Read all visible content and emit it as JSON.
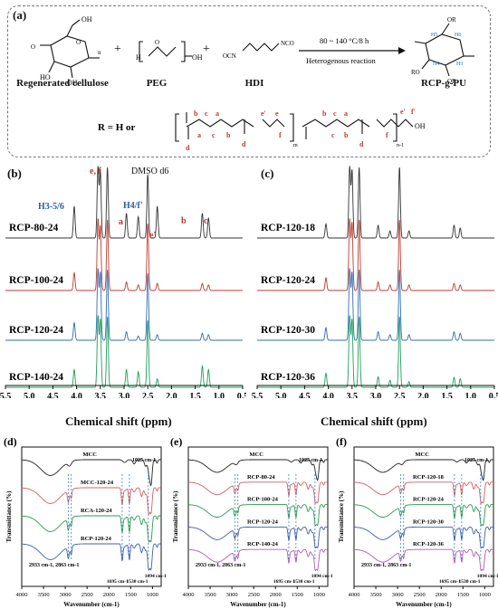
{
  "panel_a": {
    "label": "(a)",
    "reactants": [
      "Regenerated cellulose",
      "PEG",
      "HDI"
    ],
    "plus": "+",
    "conditions_top": "80 ~ 140 °C/8 h",
    "conditions_bottom": "Heterogenous reaction",
    "product": "RCP-g-PU",
    "r_definition": "R = H or",
    "peg_h": "H",
    "peg_oh": "OH",
    "hdi_left": "OCN",
    "hdi_right": "NCO",
    "prod_or_top": "OR",
    "prod_ro": "RO",
    "prod_or_right": "OR",
    "h_labels": [
      "H5",
      "H6",
      "H4",
      "H3"
    ],
    "r_letters_top": [
      "b",
      "c",
      "a",
      "e'",
      "e",
      "b",
      "c",
      "a",
      "e'",
      "f'"
    ],
    "r_letters_bottom": [
      "a",
      "c",
      "b",
      "f",
      "c",
      "b",
      "f"
    ],
    "r_d": [
      "d",
      "d",
      "d"
    ],
    "r_subs": [
      "m",
      "n-1",
      "OH"
    ],
    "r_atoms": [
      "O",
      "N",
      "H",
      "O",
      "O"
    ]
  },
  "nmr_b": {
    "label": "(b)",
    "annotations": [
      "e, f",
      "DMSO d6",
      "H3-5/6",
      "H4/f'",
      "a",
      "e'",
      "b",
      "c"
    ],
    "series": [
      "RCP-80-24",
      "RCP-100-24",
      "RCP-120-24",
      "RCP-140-24"
    ],
    "xlabel": "Chemical shift (ppm)"
  },
  "nmr_c": {
    "label": "(c)",
    "series": [
      "RCP-120-18",
      "RCP-120-24",
      "RCP-120-30",
      "RCP-120-36"
    ],
    "xlabel": "Chemical shift (ppm)"
  },
  "ftir_d": {
    "label": "(d)",
    "series": [
      "MCC",
      "MCC-120-24",
      "RCA-120-24",
      "RCP-120-24"
    ],
    "annotations": [
      "1025 cm-1",
      "2933 cm-1, 2863 cm-1",
      "1695 cm-1",
      "1530 cm-1",
      "1094 cm-1"
    ]
  },
  "ftir_e": {
    "label": "(e)",
    "series": [
      "MCC",
      "RCP-80-24",
      "RCP-100-24",
      "RCP-120-24",
      "RCP-140-24"
    ],
    "annotations": [
      "1025 cm-1",
      "2933 cm-1, 2863 cm-1",
      "1695 cm-1",
      "1530 cm-1",
      "1094 cm-1"
    ]
  },
  "ftir_f": {
    "label": "(f)",
    "series": [
      "MCC",
      "RCP-120-18",
      "RCP-120-24",
      "RCP-120-30",
      "RCP-120-36"
    ],
    "annotations": [
      "1025 cm-1",
      "2933 cm-1, 2863 cm-1",
      "1695 cm-1",
      "1530 cm-1",
      "1094 cm-1"
    ]
  },
  "chart_data": [
    {
      "type": "line",
      "panel": "b",
      "xlabel": "Chemical shift (ppm)",
      "x_ticks": [
        "5.5",
        "5.0",
        "4.5",
        "4.0",
        "3.5",
        "3.0",
        "2.5",
        "2.0",
        "1.5",
        "1.0",
        "0.5"
      ],
      "xlim": [
        5.5,
        0.5
      ],
      "peaks_ppm": [
        4.05,
        3.55,
        3.5,
        3.35,
        2.95,
        2.7,
        2.5,
        2.3,
        1.35,
        1.22
      ],
      "series": [
        {
          "name": "RCP-80-24",
          "color": "#333333",
          "heights": [
            0.45,
            1.0,
            0.95,
            1.0,
            0.35,
            0.3,
            0.9,
            0.45,
            0.35,
            0.28
          ]
        },
        {
          "name": "RCP-100-24",
          "color": "#c0392b",
          "heights": [
            0.25,
            1.0,
            0.9,
            1.0,
            0.12,
            0.08,
            0.95,
            0.1,
            0.1,
            0.08
          ]
        },
        {
          "name": "RCP-120-24",
          "color": "#2e6db4",
          "heights": [
            0.25,
            1.0,
            0.95,
            1.0,
            0.12,
            0.06,
            0.95,
            0.08,
            0.1,
            0.08
          ]
        },
        {
          "name": "RCP-140-24",
          "color": "#1e9e5a",
          "heights": [
            0.25,
            1.0,
            0.95,
            1.0,
            0.25,
            0.22,
            0.95,
            0.12,
            0.3,
            0.25
          ]
        }
      ]
    },
    {
      "type": "line",
      "panel": "c",
      "xlabel": "Chemical shift (ppm)",
      "x_ticks": [
        "5.5",
        "5.0",
        "4.5",
        "4.0",
        "3.5",
        "3.0",
        "2.5",
        "2.0",
        "1.5",
        "1.0",
        "0.5"
      ],
      "xlim": [
        5.5,
        0.5
      ],
      "peaks_ppm": [
        4.05,
        3.55,
        3.5,
        3.35,
        2.95,
        2.7,
        2.5,
        2.3,
        1.35,
        1.22
      ],
      "series": [
        {
          "name": "RCP-120-18",
          "color": "#333333",
          "heights": [
            0.2,
            1.0,
            0.95,
            1.0,
            0.18,
            0.1,
            1.0,
            0.1,
            0.18,
            0.14
          ]
        },
        {
          "name": "RCP-120-24",
          "color": "#c0392b",
          "heights": [
            0.18,
            1.0,
            0.95,
            1.0,
            0.12,
            0.08,
            1.0,
            0.08,
            0.1,
            0.08
          ]
        },
        {
          "name": "RCP-120-30",
          "color": "#2e6db4",
          "heights": [
            0.18,
            1.0,
            0.95,
            1.0,
            0.12,
            0.08,
            1.0,
            0.08,
            0.12,
            0.1
          ]
        },
        {
          "name": "RCP-120-36",
          "color": "#1e9e5a",
          "heights": [
            0.2,
            1.0,
            0.95,
            1.0,
            0.15,
            0.1,
            1.0,
            0.08,
            0.14,
            0.12
          ]
        }
      ]
    },
    {
      "type": "line",
      "panel": "d",
      "xlabel": "Wavenumber (cm-1)",
      "ylabel": "Transmittance (%)",
      "x_ticks": [
        "4000",
        "3500",
        "3000",
        "2500",
        "2000",
        "1500",
        "1000"
      ],
      "xlim": [
        4000,
        800
      ],
      "series": [
        {
          "name": "MCC",
          "color": "#222222"
        },
        {
          "name": "MCC-120-24",
          "color": "#d46060"
        },
        {
          "name": "RCA-120-24",
          "color": "#2a9e4a"
        },
        {
          "name": "RCP-120-24",
          "color": "#3d5fb0"
        }
      ]
    },
    {
      "type": "line",
      "panel": "e",
      "xlabel": "Wavenumber (cm-1)",
      "ylabel": "Transmittance (%)",
      "x_ticks": [
        "4000",
        "3500",
        "3000",
        "2500",
        "2000",
        "1500",
        "1000"
      ],
      "xlim": [
        4000,
        800
      ],
      "series": [
        {
          "name": "MCC",
          "color": "#222222"
        },
        {
          "name": "RCP-80-24",
          "color": "#d46060"
        },
        {
          "name": "RCP-100-24",
          "color": "#2a9e4a"
        },
        {
          "name": "RCP-120-24",
          "color": "#3d5fb0"
        },
        {
          "name": "RCP-140-24",
          "color": "#b05ab8"
        }
      ]
    },
    {
      "type": "line",
      "panel": "f",
      "xlabel": "Wavenumber (cm-1)",
      "ylabel": "Transmittance (%)",
      "x_ticks": [
        "4000",
        "3500",
        "3000",
        "2500",
        "2000",
        "1500",
        "1000"
      ],
      "xlim": [
        4000,
        800
      ],
      "series": [
        {
          "name": "MCC",
          "color": "#222222"
        },
        {
          "name": "RCP-120-18",
          "color": "#d46060"
        },
        {
          "name": "RCP-120-24",
          "color": "#2a9e4a"
        },
        {
          "name": "RCP-120-30",
          "color": "#3d5fb0"
        },
        {
          "name": "RCP-120-36",
          "color": "#b05ab8"
        }
      ]
    }
  ]
}
